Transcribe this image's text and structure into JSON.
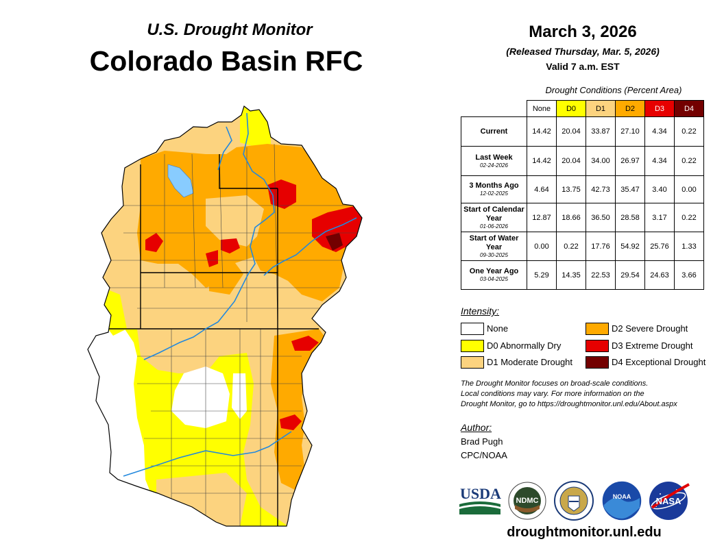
{
  "header": {
    "subtitle": "U.S. Drought Monitor",
    "title": "Colorado Basin RFC",
    "date": "March 3, 2026",
    "released": "(Released Thursday, Mar. 5, 2026)",
    "valid": "Valid 7 a.m. EST"
  },
  "table": {
    "caption": "Drought Conditions (Percent Area)",
    "columns": [
      "None",
      "D0",
      "D1",
      "D2",
      "D3",
      "D4"
    ],
    "column_colors": [
      "#ffffff",
      "#ffff00",
      "#fcd37f",
      "#ffaa00",
      "#e60000",
      "#730000"
    ],
    "rows": [
      {
        "label": "Current",
        "date": "",
        "values": [
          "14.42",
          "20.04",
          "33.87",
          "27.10",
          "4.34",
          "0.22"
        ]
      },
      {
        "label": "Last Week",
        "date": "02-24-2026",
        "values": [
          "14.42",
          "20.04",
          "34.00",
          "26.97",
          "4.34",
          "0.22"
        ]
      },
      {
        "label": "3 Months Ago",
        "date": "12-02-2025",
        "values": [
          "4.64",
          "13.75",
          "42.73",
          "35.47",
          "3.40",
          "0.00"
        ]
      },
      {
        "label": "Start of Calendar Year",
        "date": "01-06-2026",
        "values": [
          "12.87",
          "18.66",
          "36.50",
          "28.58",
          "3.17",
          "0.22"
        ]
      },
      {
        "label": "Start of Water Year",
        "date": "09-30-2025",
        "values": [
          "0.00",
          "0.22",
          "17.76",
          "54.92",
          "25.76",
          "1.33"
        ]
      },
      {
        "label": "One Year Ago",
        "date": "03-04-2025",
        "values": [
          "5.29",
          "14.35",
          "22.53",
          "29.54",
          "24.63",
          "3.66"
        ]
      }
    ]
  },
  "legend": {
    "heading": "Intensity:",
    "items": [
      {
        "label": "None",
        "color": "#ffffff"
      },
      {
        "label": "D0 Abnormally Dry",
        "color": "#ffff00"
      },
      {
        "label": "D1 Moderate Drought",
        "color": "#fcd37f"
      },
      {
        "label": "D2 Severe Drought",
        "color": "#ffaa00"
      },
      {
        "label": "D3 Extreme Drought",
        "color": "#e60000"
      },
      {
        "label": "D4 Exceptional Drought",
        "color": "#730000"
      }
    ]
  },
  "note": {
    "line1": "The Drought Monitor focuses on broad-scale conditions.",
    "line2": "Local conditions may vary. For more information on the",
    "line3": "Drought Monitor, go to https://droughtmonitor.unl.edu/About.aspx"
  },
  "author": {
    "heading": "Author:",
    "name": "Brad Pugh",
    "org": "CPC/NOAA"
  },
  "logos": {
    "usda": "USDA",
    "ndmc": "NDMC",
    "noaa": "NOAA",
    "nasa": "NASA"
  },
  "footer": {
    "site": "droughtmonitor.unl.edu"
  }
}
